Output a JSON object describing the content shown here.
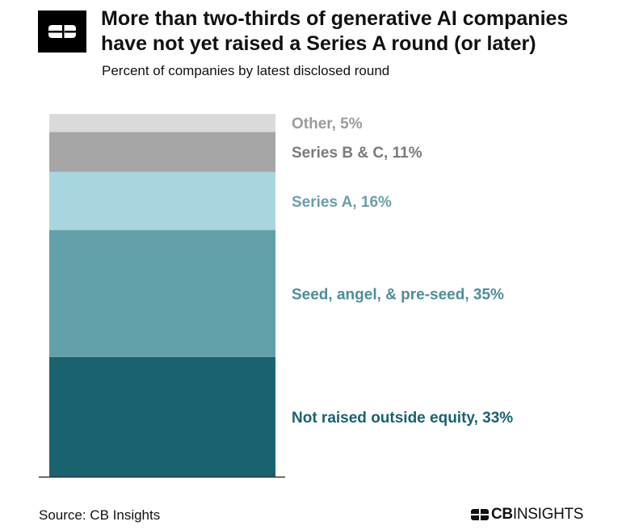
{
  "header": {
    "title": "More than two-thirds of generative AI companies have not yet raised a Series A round (or later)",
    "subtitle": "Percent of companies by latest disclosed round"
  },
  "footer": {
    "source": "Source: CB Insights",
    "brand_bold": "CB",
    "brand_rest": "INSIGHTS"
  },
  "chart_data": {
    "type": "bar",
    "stacked": true,
    "title": "More than two-thirds of generative AI companies have not yet raised a Series A round (or later)",
    "subtitle": "Percent of companies by latest disclosed round",
    "unit": "%",
    "segments": [
      {
        "name": "Not raised outside equity",
        "value": 33,
        "label": "Not raised outside equity, 33%",
        "color": "#1a6270",
        "label_color": "#1a6270"
      },
      {
        "name": "Seed, angel, & pre-seed",
        "value": 35,
        "label": "Seed, angel, & pre-seed, 35%",
        "color": "#63a0aa",
        "label_color": "#4e8e99"
      },
      {
        "name": "Series A",
        "value": 16,
        "label": "Series A, 16%",
        "color": "#a8d5df",
        "label_color": "#6c9eab"
      },
      {
        "name": "Series B & C",
        "value": 11,
        "label": "Series B & C, 11%",
        "color": "#a6a6a6",
        "label_color": "#7b7b7b"
      },
      {
        "name": "Other",
        "value": 5,
        "label": "Other, 5%",
        "color": "#dadada",
        "label_color": "#9b9b9b"
      }
    ],
    "axis_line_color": "#333333",
    "grid": false,
    "legend": "labels-right"
  }
}
